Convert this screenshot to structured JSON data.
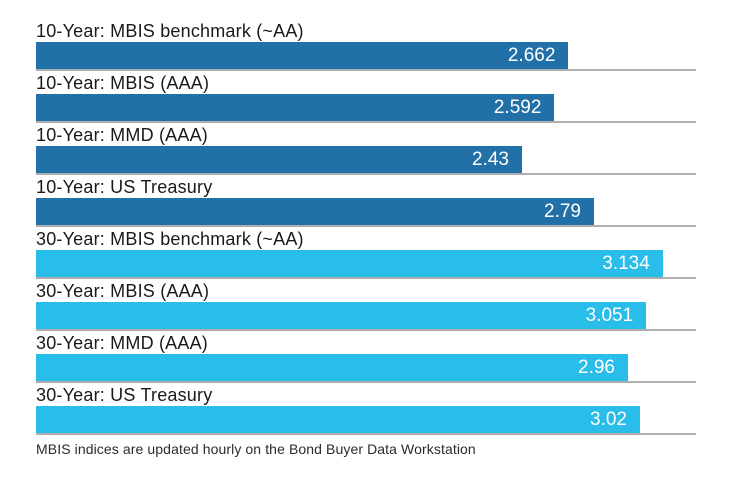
{
  "colors": {
    "dark_blue": "#2270a8",
    "light_blue": "#29bde9",
    "baseline_gray": "#aeaeae",
    "label_text": "#1a1a1a",
    "value_text": "#ffffff",
    "footnote_text": "#2b2b2b",
    "background": "#ffffff"
  },
  "chart_data": {
    "type": "bar",
    "orientation": "horizontal",
    "title": "",
    "xlabel": "",
    "ylabel": "",
    "xlim": [
      0,
      3.3
    ],
    "grid": "baseline under each bar, full track width",
    "legend": "none",
    "value_label_position": "inside-bar, right-aligned, white",
    "categories": [
      "10-Year: MBIS benchmark (~AA)",
      "10-Year: MBIS (AAA)",
      "10-Year: MMD (AAA)",
      "10-Year: US Treasury",
      "30-Year: MBIS benchmark (~AA)",
      "30-Year: MBIS (AAA)",
      "30-Year: MMD (AAA)",
      "30-Year: US Treasury"
    ],
    "values": [
      2.662,
      2.592,
      2.43,
      2.79,
      3.134,
      3.051,
      2.96,
      3.02
    ],
    "value_labels": [
      "2.662",
      "2.592",
      "2.43",
      "2.79",
      "3.134",
      "3.051",
      "2.96",
      "3.02"
    ],
    "series": [
      {
        "name": "10-Year",
        "color_key": "dark_blue",
        "count": 4
      },
      {
        "name": "30-Year",
        "color_key": "light_blue",
        "count": 4
      }
    ],
    "footnote": "MBIS indices are updated hourly on the Bond Buyer Data Workstation"
  }
}
